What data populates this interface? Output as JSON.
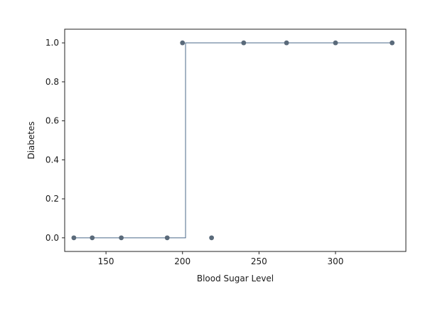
{
  "chart_data": {
    "type": "scatter",
    "title": "",
    "xlabel": "Blood Sugar Level",
    "ylabel": "Diabetes",
    "xlim": [
      123,
      346
    ],
    "ylim": [
      -0.07,
      1.07
    ],
    "x_ticks": [
      150,
      200,
      250,
      300
    ],
    "y_ticks": [
      0.0,
      0.2,
      0.4,
      0.6,
      0.8,
      1.0
    ],
    "x_tick_labels": [
      "150",
      "200",
      "250",
      "300"
    ],
    "y_tick_labels": [
      "0.0",
      "0.2",
      "0.4",
      "0.6",
      "0.8",
      "1.0"
    ],
    "grid": false,
    "series": [
      {
        "kind": "scatter",
        "x": [
          129,
          141,
          160,
          190,
          200,
          219,
          240,
          268,
          300,
          337
        ],
        "y": [
          0,
          0,
          0,
          0,
          1,
          0,
          1,
          1,
          1,
          1
        ],
        "color": "#5a6a7a"
      },
      {
        "kind": "step",
        "x": [
          129,
          202,
          202,
          337
        ],
        "y": [
          0,
          0,
          1,
          1
        ],
        "color": "#4a6a8a"
      }
    ]
  }
}
